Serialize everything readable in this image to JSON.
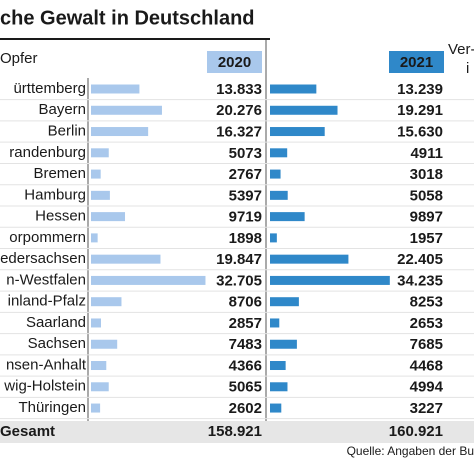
{
  "chart_data": {
    "type": "bar",
    "title": "che Gewalt in Deutschland",
    "subtitle": "Opfer",
    "header_right": "Ver-",
    "header_right_2": "i",
    "categories": [
      "ürttemberg",
      "Bayern",
      "Berlin",
      "randenburg",
      "Bremen",
      "Hamburg",
      "Hessen",
      "orpommern",
      "edersachsen",
      "n-Westfalen",
      "inland-Pfalz",
      "Saarland",
      "Sachsen",
      "nsen-Anhalt",
      "wig-Holstein",
      "Thüringen"
    ],
    "series": [
      {
        "name": "2020",
        "color": "#a9c8ec",
        "values": [
          13833,
          20276,
          16327,
          5073,
          2767,
          5397,
          9719,
          1898,
          19847,
          32705,
          8706,
          2857,
          7483,
          4366,
          5065,
          2602
        ],
        "value_labels": [
          "13.833",
          "20.276",
          "16.327",
          "5073",
          "2767",
          "5397",
          "9719",
          "1898",
          "19.847",
          "32.705",
          "8706",
          "2857",
          "7483",
          "4366",
          "5065",
          "2602"
        ]
      },
      {
        "name": "2021",
        "color": "#2f88c9",
        "values": [
          13239,
          19291,
          15630,
          4911,
          3018,
          5058,
          9897,
          1957,
          22405,
          34235,
          8253,
          2653,
          7685,
          4468,
          4994,
          3227
        ],
        "value_labels": [
          "13.239",
          "19.291",
          "15.630",
          "4911",
          "3018",
          "5058",
          "9897",
          "1957",
          "22.405",
          "34.235",
          "8253",
          "2653",
          "7685",
          "4468",
          "4994",
          "3227"
        ]
      }
    ],
    "total_label": "Gesamt",
    "totals": [
      158921,
      160921
    ],
    "total_labels": [
      "158.921",
      "160.921"
    ],
    "source": "Quelle: Angaben der Bu"
  }
}
